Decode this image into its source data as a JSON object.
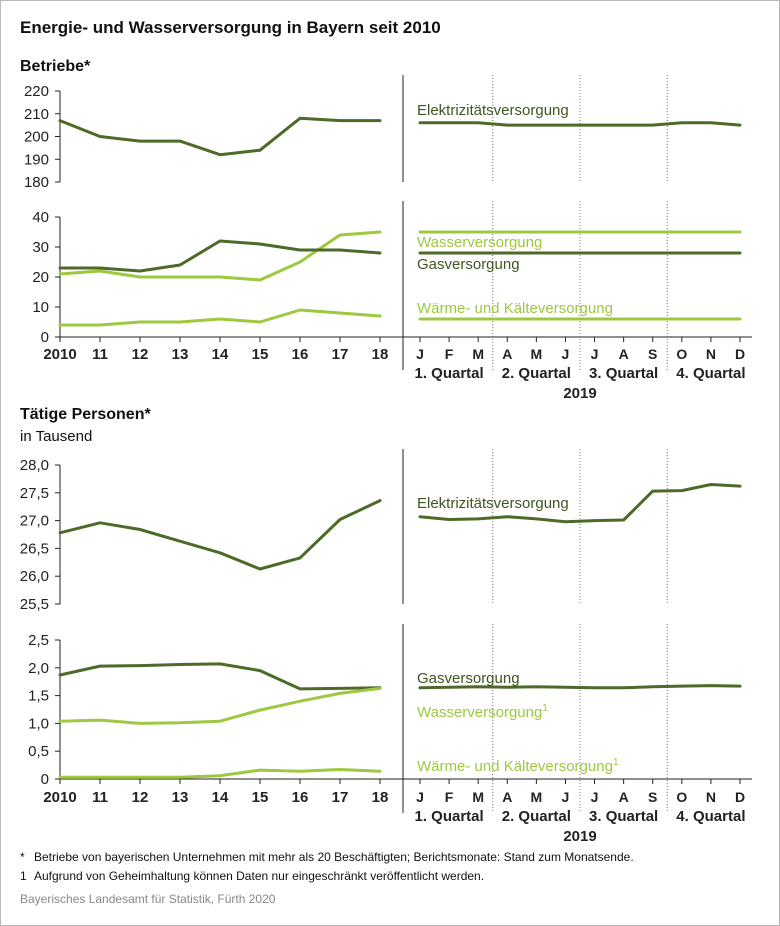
{
  "title": "Energie- und Wasserversorgung in Bayern seit 2010",
  "sections": [
    {
      "title": "Betriebe*",
      "subtitle": ""
    },
    {
      "title": "Tätige Personen*",
      "subtitle": "in Tausend"
    }
  ],
  "colors": {
    "dark_green": "#4e6a29",
    "light_green": "#9dc83f",
    "axis": "#222222"
  },
  "chart_data": [
    {
      "type": "line",
      "section": "Betriebe*",
      "panel": "upper",
      "ylim": [
        180,
        220
      ],
      "yticks": [
        "180",
        "190",
        "200",
        "210",
        "220"
      ],
      "annual": {
        "x": [
          "2010",
          "11",
          "12",
          "13",
          "14",
          "15",
          "16",
          "17",
          "18"
        ]
      },
      "monthly": {
        "x": [
          "J",
          "F",
          "M",
          "A",
          "M",
          "J",
          "J",
          "A",
          "S",
          "O",
          "N",
          "D"
        ],
        "quarters": [
          "1. Quartal",
          "2. Quartal",
          "3. Quartal",
          "4. Quartal"
        ],
        "year": "2019"
      },
      "series": [
        {
          "name": "Elektrizitätsversorgung",
          "color": "dark",
          "annual": [
            207,
            200,
            198,
            198,
            192,
            194,
            208,
            207,
            207
          ],
          "monthly": [
            206,
            206,
            206,
            205,
            205,
            205,
            205,
            205,
            205,
            206,
            206,
            205
          ]
        }
      ]
    },
    {
      "type": "line",
      "section": "Betriebe*",
      "panel": "lower",
      "ylim": [
        0,
        40
      ],
      "yticks": [
        "0",
        "10",
        "20",
        "30",
        "40"
      ],
      "annual": {
        "x": [
          "2010",
          "11",
          "12",
          "13",
          "14",
          "15",
          "16",
          "17",
          "18"
        ]
      },
      "monthly": {
        "x": [
          "J",
          "F",
          "M",
          "A",
          "M",
          "J",
          "J",
          "A",
          "S",
          "O",
          "N",
          "D"
        ],
        "quarters": [
          "1. Quartal",
          "2. Quartal",
          "3. Quartal",
          "4. Quartal"
        ],
        "year": "2019"
      },
      "series": [
        {
          "name": "Wasserversorgung",
          "color": "light",
          "annual": [
            21,
            22,
            20,
            20,
            20,
            19,
            25,
            34,
            35
          ],
          "monthly": [
            35,
            35,
            35,
            35,
            35,
            35,
            35,
            35,
            35,
            35,
            35,
            35
          ]
        },
        {
          "name": "Gasversorgung",
          "color": "dark",
          "annual": [
            23,
            23,
            22,
            24,
            32,
            31,
            29,
            29,
            28
          ],
          "monthly": [
            28,
            28,
            28,
            28,
            28,
            28,
            28,
            28,
            28,
            28,
            28,
            28
          ]
        },
        {
          "name": "Wärme- und Kälteversorgung",
          "color": "light",
          "annual": [
            4,
            4,
            5,
            5,
            6,
            5,
            9,
            8,
            7
          ],
          "monthly": [
            6,
            6,
            6,
            6,
            6,
            6,
            6,
            6,
            6,
            6,
            6,
            6
          ]
        }
      ]
    },
    {
      "type": "line",
      "section": "Tätige Personen*",
      "panel": "upper",
      "ylim": [
        25.5,
        28.0
      ],
      "yticks": [
        "25,5",
        "26,0",
        "26,5",
        "27,0",
        "27,5",
        "28,0"
      ],
      "annual": {
        "x": [
          "2010",
          "11",
          "12",
          "13",
          "14",
          "15",
          "16",
          "17",
          "18"
        ]
      },
      "monthly": {
        "x": [
          "J",
          "F",
          "M",
          "A",
          "M",
          "J",
          "J",
          "A",
          "S",
          "O",
          "N",
          "D"
        ],
        "quarters": [
          "1. Quartal",
          "2. Quartal",
          "3. Quartal",
          "4. Quartal"
        ],
        "year": "2019"
      },
      "series": [
        {
          "name": "Elektrizitätsversorgung",
          "color": "dark",
          "annual": [
            26.78,
            26.96,
            26.84,
            26.63,
            26.42,
            26.13,
            26.33,
            27.02,
            27.36
          ],
          "monthly": [
            27.07,
            27.02,
            27.03,
            27.07,
            27.03,
            26.98,
            27.0,
            27.01,
            27.53,
            27.54,
            27.65,
            27.62
          ]
        }
      ]
    },
    {
      "type": "line",
      "section": "Tätige Personen*",
      "panel": "lower",
      "ylim": [
        0,
        2.5
      ],
      "yticks": [
        "0",
        "0,5",
        "1,0",
        "1,5",
        "2,0",
        "2,5"
      ],
      "annual": {
        "x": [
          "2010",
          "11",
          "12",
          "13",
          "14",
          "15",
          "16",
          "17",
          "18"
        ]
      },
      "monthly": {
        "x": [
          "J",
          "F",
          "M",
          "A",
          "M",
          "J",
          "J",
          "A",
          "S",
          "O",
          "N",
          "D"
        ],
        "quarters": [
          "1. Quartal",
          "2. Quartal",
          "3. Quartal",
          "4. Quartal"
        ],
        "year": "2019"
      },
      "series": [
        {
          "name": "Gasversorgung",
          "color": "dark",
          "annual": [
            1.87,
            2.03,
            2.04,
            2.06,
            2.07,
            1.95,
            1.62,
            1.63,
            1.64
          ],
          "monthly": [
            1.64,
            1.65,
            1.66,
            1.65,
            1.66,
            1.65,
            1.64,
            1.64,
            1.66,
            1.67,
            1.68,
            1.67
          ]
        },
        {
          "name": "Wasserversorgung",
          "sup": "1",
          "color": "light",
          "annual": [
            1.04,
            1.06,
            1.0,
            1.01,
            1.04,
            1.24,
            1.4,
            1.54,
            1.63
          ],
          "monthly": null
        },
        {
          "name": "Wärme- und Kälteversorgung",
          "sup": "1",
          "color": "light",
          "annual": [
            0.03,
            0.03,
            0.03,
            0.03,
            0.06,
            0.16,
            0.14,
            0.17,
            0.14
          ],
          "monthly": null
        }
      ]
    }
  ],
  "footnotes": [
    {
      "mark": "*",
      "text": "Betriebe von bayerischen Unternehmen mit mehr als 20 Beschäftigten; Berichtsmonate: Stand zum Monatsende."
    },
    {
      "mark": "1",
      "text": "Aufgrund von Geheimhaltung können Daten nur eingeschränkt veröffentlicht werden."
    }
  ],
  "source": "Bayerisches Landesamt für Statistik, Fürth 2020"
}
